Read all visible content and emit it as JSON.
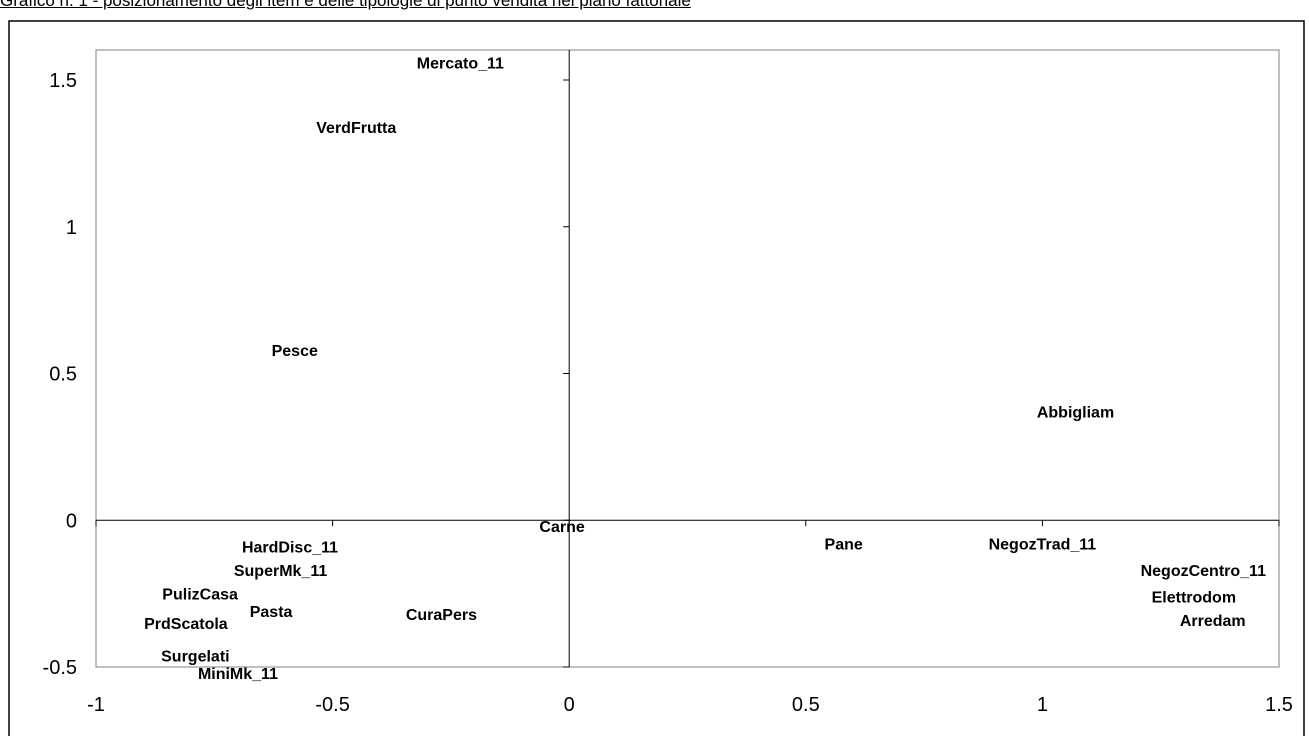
{
  "header": {
    "title": "Grafico n. 1 - posizionamento degli item e delle tipologie di punto vendita nel piano fattoriale"
  },
  "chart_data": {
    "type": "scatter",
    "title": "",
    "xlabel": "",
    "ylabel": "",
    "xlim": [
      -1,
      1.5
    ],
    "ylim": [
      -0.5,
      1.6
    ],
    "xticks": [
      -1,
      -0.5,
      0,
      0.5,
      1,
      1.5
    ],
    "yticks": [
      -0.5,
      0,
      0.5,
      1,
      1.5
    ],
    "xtick_labels": [
      "-1",
      "-0.5",
      "0",
      "0.5",
      "1",
      "1.5"
    ],
    "ytick_labels": [
      "-0.5",
      "0",
      "0.5",
      "1",
      "1.5"
    ],
    "grid": false,
    "points": [
      {
        "label": "Mercato_11",
        "x": -0.23,
        "y": 1.56
      },
      {
        "label": "VerdFrutta",
        "x": -0.45,
        "y": 1.34
      },
      {
        "label": "Pesce",
        "x": -0.58,
        "y": 0.58
      },
      {
        "label": "Abbigliam",
        "x": 1.07,
        "y": 0.37
      },
      {
        "label": "Carne",
        "x": -0.015,
        "y": -0.02
      },
      {
        "label": "Pane",
        "x": 0.58,
        "y": -0.08
      },
      {
        "label": "NegozTrad_11",
        "x": 1.0,
        "y": -0.08
      },
      {
        "label": "HardDisc_11",
        "x": -0.59,
        "y": -0.09
      },
      {
        "label": "SuperMk_11",
        "x": -0.61,
        "y": -0.17
      },
      {
        "label": "NegozCentro_11",
        "x": 1.34,
        "y": -0.17
      },
      {
        "label": "PulizCasa",
        "x": -0.78,
        "y": -0.25
      },
      {
        "label": "Elettrodom",
        "x": 1.32,
        "y": -0.26
      },
      {
        "label": "Pasta",
        "x": -0.63,
        "y": -0.31
      },
      {
        "label": "CuraPers",
        "x": -0.27,
        "y": -0.32
      },
      {
        "label": "Arredam",
        "x": 1.36,
        "y": -0.34
      },
      {
        "label": "PrdScatola",
        "x": -0.81,
        "y": -0.35
      },
      {
        "label": "Surgelati",
        "x": -0.79,
        "y": -0.46
      },
      {
        "label": "MiniMk_11",
        "x": -0.7,
        "y": -0.52
      }
    ]
  }
}
